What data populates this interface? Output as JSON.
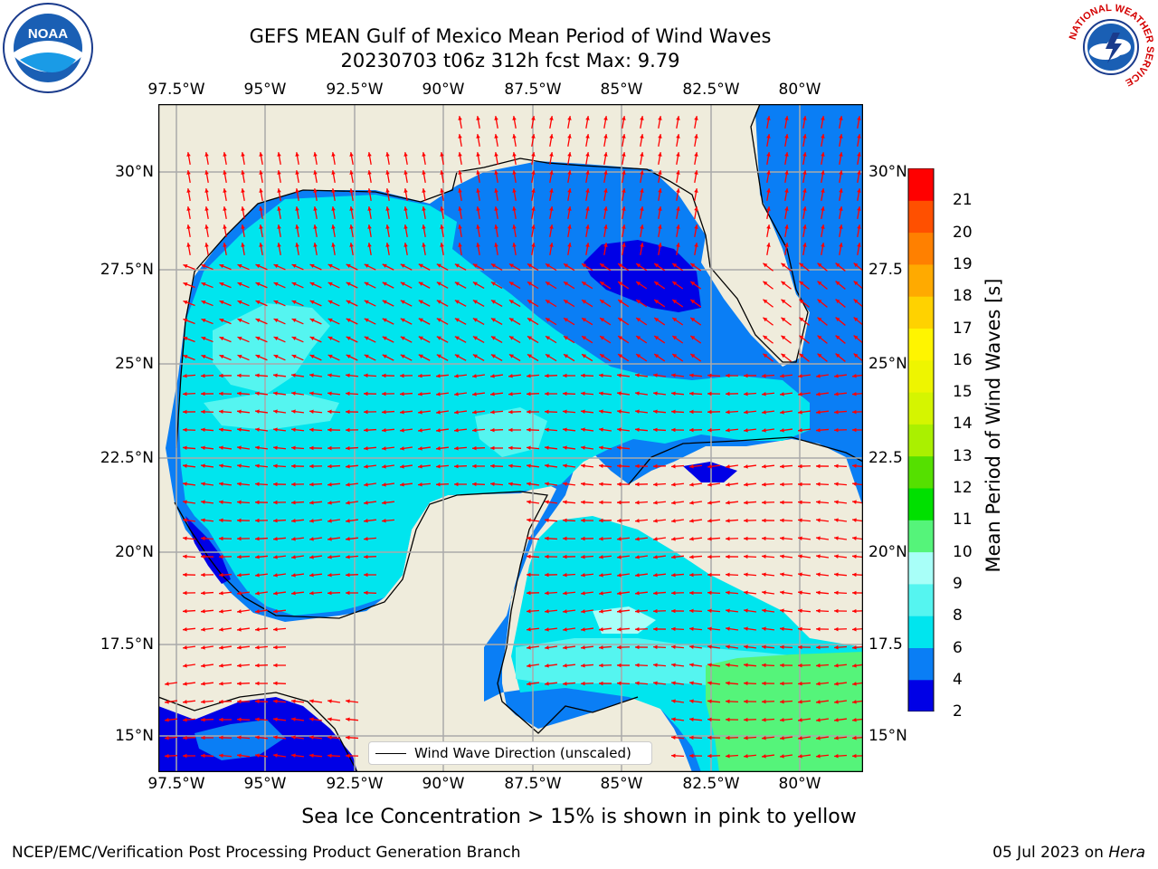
{
  "title": {
    "line1": "GEFS MEAN Gulf of Mexico Mean Period of Wind Waves",
    "line2": "20230703 t06z 312h fcst   Max: 9.79"
  },
  "axes": {
    "lon_ticks": [
      "97.5°W",
      "95°W",
      "92.5°W",
      "90°W",
      "87.5°W",
      "85°W",
      "82.5°W",
      "80°W"
    ],
    "lat_ticks_left": [
      "30°N",
      "27.5°N",
      "25°N",
      "22.5°N",
      "20°N",
      "17.5°N",
      "15°N"
    ],
    "lat_ticks_right": [
      "30°N",
      "27.5",
      "25°N",
      "22.5",
      "20°N",
      "17.5",
      "15°N"
    ]
  },
  "legend": {
    "label": "Wind Wave Direction (unscaled)"
  },
  "colorbar": {
    "title": "Mean Period of Wind Waves [s]",
    "ticks": [
      "2",
      "4",
      "6",
      "8",
      "9",
      "10",
      "11",
      "12",
      "13",
      "14",
      "15",
      "16",
      "17",
      "18",
      "19",
      "20",
      "21"
    ],
    "colors": [
      "#0000e6",
      "#0a7ef5",
      "#00e5ee",
      "#55f5f0",
      "#a8fff8",
      "#55f47a",
      "#00e000",
      "#55e000",
      "#aaf000",
      "#d5f500",
      "#eef500",
      "#fff500",
      "#ffd200",
      "#ffaa00",
      "#ff8000",
      "#ff5000",
      "#ff0000"
    ]
  },
  "note": "Sea Ice Concentration > 15% is shown in pink to yellow",
  "footer": {
    "left": "NCEP/EMC/Verification Post Processing Product Generation Branch",
    "right_date": "05 Jul 2023 on ",
    "right_host": "Hera"
  },
  "colors": {
    "land": "#efecdc",
    "wave_2_4": "#0a7ef5",
    "wave_lt2": "#0000e6",
    "wave_4_6": "#00e5ee",
    "wave_6_8": "#55f5f0",
    "wave_8_9": "#a8fff8",
    "wave_9_10": "#55f47a",
    "arrow": "#ff0000",
    "grid": "#aaaaaa"
  },
  "logos": {
    "noaa": "NOAA",
    "nws": "NATIONAL WEATHER SERVICE"
  }
}
